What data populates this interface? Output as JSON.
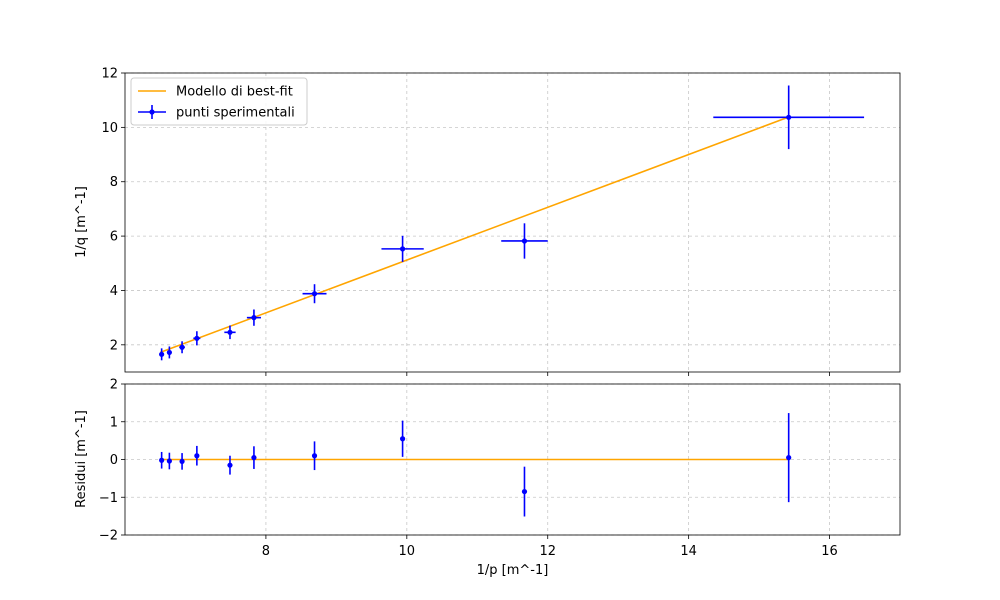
{
  "chart_data": [
    {
      "type": "scatter",
      "title": "",
      "xlabel": "",
      "ylabel": "1/q [m^-1]",
      "xlim": [
        6.0,
        17.0
      ],
      "ylim": [
        1.0,
        12.0
      ],
      "yticks": [
        2,
        4,
        6,
        8,
        10,
        12
      ],
      "grid": true,
      "legend": {
        "position": "upper-left",
        "entries": [
          "Modello di best-fit",
          "punti sperimentali"
        ]
      },
      "colors": {
        "fit": "#ffa500",
        "points": "#0000ff",
        "grid": "#b0b0b0"
      },
      "series": [
        {
          "name": "Modello di best-fit",
          "kind": "line",
          "x": [
            6.5,
            15.42
          ],
          "y": [
            1.72,
            10.38
          ]
        },
        {
          "name": "punti sperimentali",
          "kind": "errorbar",
          "x": [
            6.52,
            6.63,
            6.81,
            7.02,
            7.49,
            7.83,
            8.69,
            9.94,
            11.67,
            15.42
          ],
          "y": [
            1.65,
            1.72,
            1.91,
            2.24,
            2.46,
            3.0,
            3.88,
            5.53,
            5.82,
            10.37
          ],
          "xerr": [
            0.02,
            0.03,
            0.04,
            0.05,
            0.08,
            0.1,
            0.17,
            0.3,
            0.33,
            1.07
          ],
          "yerr": [
            0.22,
            0.22,
            0.22,
            0.26,
            0.25,
            0.3,
            0.35,
            0.48,
            0.65,
            1.17
          ]
        }
      ]
    },
    {
      "type": "scatter",
      "title": "",
      "xlabel": "1/p [m^-1]",
      "ylabel": "Residui [m^-1]",
      "xlim": [
        6.0,
        17.0
      ],
      "ylim": [
        -2,
        2
      ],
      "xticks": [
        8,
        10,
        12,
        14,
        16
      ],
      "yticks": [
        -2,
        -1,
        0,
        1,
        2
      ],
      "grid": true,
      "series": [
        {
          "kind": "line",
          "x": [
            6.5,
            15.42
          ],
          "y": [
            0,
            0
          ]
        },
        {
          "kind": "errorbar",
          "x": [
            6.52,
            6.63,
            6.81,
            7.02,
            7.49,
            7.83,
            8.69,
            9.94,
            11.67,
            15.42
          ],
          "y": [
            -0.02,
            -0.04,
            -0.05,
            0.1,
            -0.15,
            0.05,
            0.1,
            0.55,
            -0.85,
            0.05
          ],
          "yerr": [
            0.22,
            0.22,
            0.22,
            0.26,
            0.25,
            0.3,
            0.38,
            0.48,
            0.66,
            1.18
          ]
        }
      ]
    }
  ]
}
